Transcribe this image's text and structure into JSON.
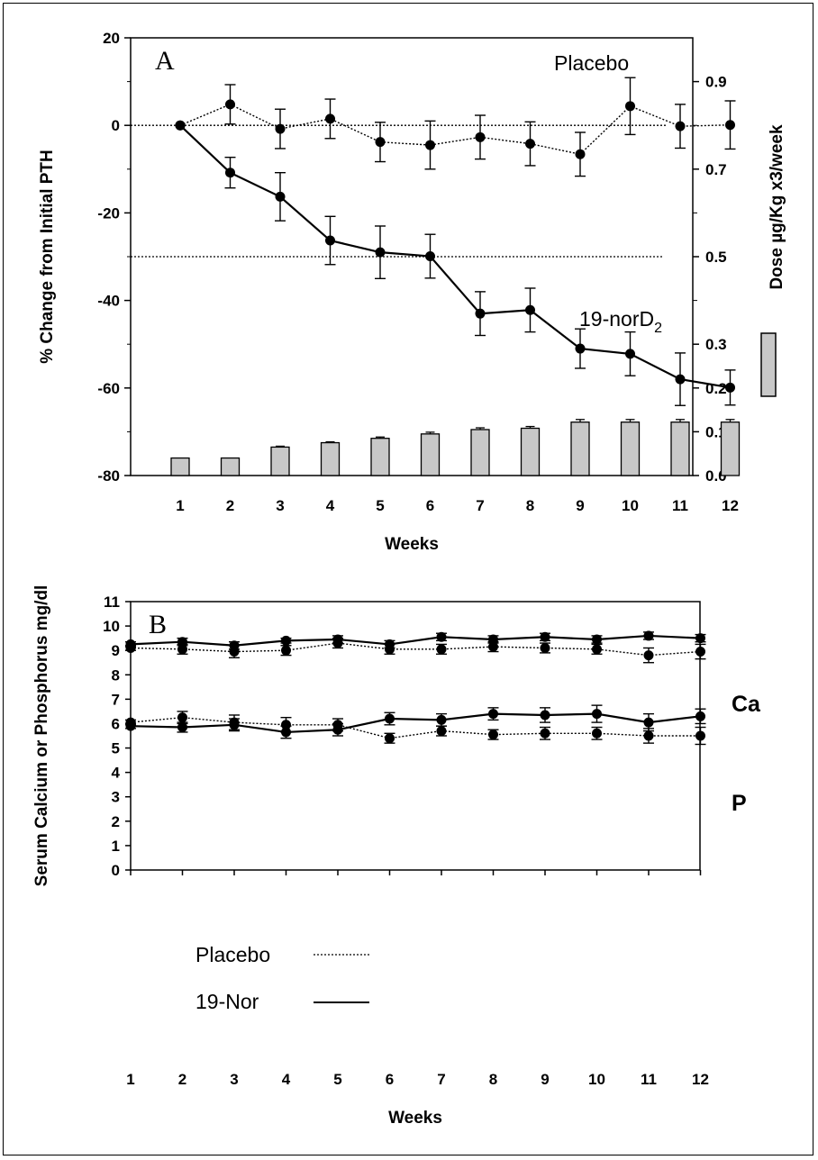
{
  "chart_data": [
    {
      "type": "line",
      "panel_label": "A",
      "xlabel": "Weeks",
      "ylabel": "% Change from Initial PTH",
      "y2label": "Dose µg/Kg x3/week",
      "x": [
        1,
        2,
        3,
        4,
        5,
        6,
        7,
        8,
        9,
        10,
        11,
        12
      ],
      "ylim": [
        -80,
        20
      ],
      "y_ticks": [
        20,
        0,
        -20,
        -40,
        -60,
        -80
      ],
      "y2lim": [
        0.0,
        1.0
      ],
      "y2_ticks": [
        "0.9",
        "0.7",
        "0.5",
        "0.3",
        "0.2",
        "0.1",
        "0.0"
      ],
      "reference_line_y": -30,
      "series": [
        {
          "name": "Placebo",
          "style": "dotted",
          "values": [
            0,
            4.8,
            -0.8,
            1.5,
            -3.8,
            -4.5,
            -2.7,
            -4.2,
            -6.6,
            4.4,
            -0.2,
            0.1
          ],
          "errors": [
            0,
            4.5,
            4.5,
            4.5,
            4.5,
            5.5,
            5.0,
            5.0,
            5.0,
            6.5,
            5.0,
            5.5
          ]
        },
        {
          "name": "19-norD2",
          "style": "solid",
          "values": [
            0,
            -10.8,
            -16.3,
            -26.3,
            -29.0,
            -29.9,
            -43.0,
            -42.2,
            -51.0,
            -52.2,
            -58.0,
            -59.9
          ],
          "errors": [
            0,
            3.5,
            5.5,
            5.5,
            6.0,
            5.0,
            5.0,
            5.0,
            4.5,
            5.0,
            6.0,
            4.0
          ]
        }
      ],
      "dose_series": {
        "name": "Dose",
        "values": [
          0.04,
          0.04,
          0.065,
          0.075,
          0.085,
          0.095,
          0.105,
          0.108,
          0.122,
          0.122,
          0.122,
          0.122
        ],
        "errors": [
          0,
          0,
          0.002,
          0.002,
          0.003,
          0.004,
          0.004,
          0.004,
          0.006,
          0.006,
          0.006,
          0.006
        ]
      },
      "annotations": {
        "placebo": "Placebo",
        "drug": "19-norD",
        "drug_sub": "2"
      }
    },
    {
      "type": "line",
      "panel_label": "B",
      "xlabel": "Weeks",
      "ylabel": "Serum Calcium or Phosphorus mg/dl",
      "x": [
        1,
        2,
        3,
        4,
        5,
        6,
        7,
        8,
        9,
        10,
        11,
        12
      ],
      "ylim": [
        0,
        11
      ],
      "y_ticks": [
        0,
        1,
        2,
        3,
        4,
        5,
        6,
        7,
        8,
        9,
        10,
        11
      ],
      "series": [
        {
          "name": "Ca 19-Nor",
          "style": "solid",
          "values": [
            9.25,
            9.35,
            9.2,
            9.4,
            9.45,
            9.25,
            9.55,
            9.45,
            9.55,
            9.45,
            9.6,
            9.5
          ],
          "errors": [
            0.1,
            0.15,
            0.15,
            0.1,
            0.15,
            0.15,
            0.15,
            0.15,
            0.15,
            0.15,
            0.15,
            0.15
          ]
        },
        {
          "name": "Ca Placebo",
          "style": "dotted",
          "values": [
            9.1,
            9.05,
            8.95,
            9.0,
            9.3,
            9.05,
            9.05,
            9.15,
            9.1,
            9.05,
            8.8,
            8.95
          ],
          "errors": [
            0.1,
            0.2,
            0.25,
            0.2,
            0.2,
            0.2,
            0.2,
            0.2,
            0.2,
            0.2,
            0.3,
            0.3
          ]
        },
        {
          "name": "P 19-Nor",
          "style": "solid",
          "values": [
            5.9,
            5.85,
            5.95,
            5.65,
            5.75,
            6.2,
            6.15,
            6.4,
            6.35,
            6.4,
            6.05,
            6.3
          ],
          "errors": [
            0.1,
            0.2,
            0.25,
            0.25,
            0.25,
            0.25,
            0.25,
            0.25,
            0.3,
            0.35,
            0.35,
            0.3
          ]
        },
        {
          "name": "P Placebo",
          "style": "dotted",
          "values": [
            6.05,
            6.25,
            6.05,
            5.95,
            5.95,
            5.4,
            5.7,
            5.55,
            5.6,
            5.6,
            5.5,
            5.5
          ],
          "errors": [
            0.1,
            0.25,
            0.3,
            0.3,
            0.25,
            0.2,
            0.2,
            0.2,
            0.25,
            0.25,
            0.3,
            0.35
          ]
        }
      ],
      "annotations": {
        "ca": "Ca",
        "p": "P"
      },
      "legend": {
        "position": "lower-left",
        "entries": [
          {
            "label": "Placebo",
            "style": "dotted"
          },
          {
            "label": "19-Nor",
            "style": "solid"
          }
        ]
      }
    }
  ]
}
